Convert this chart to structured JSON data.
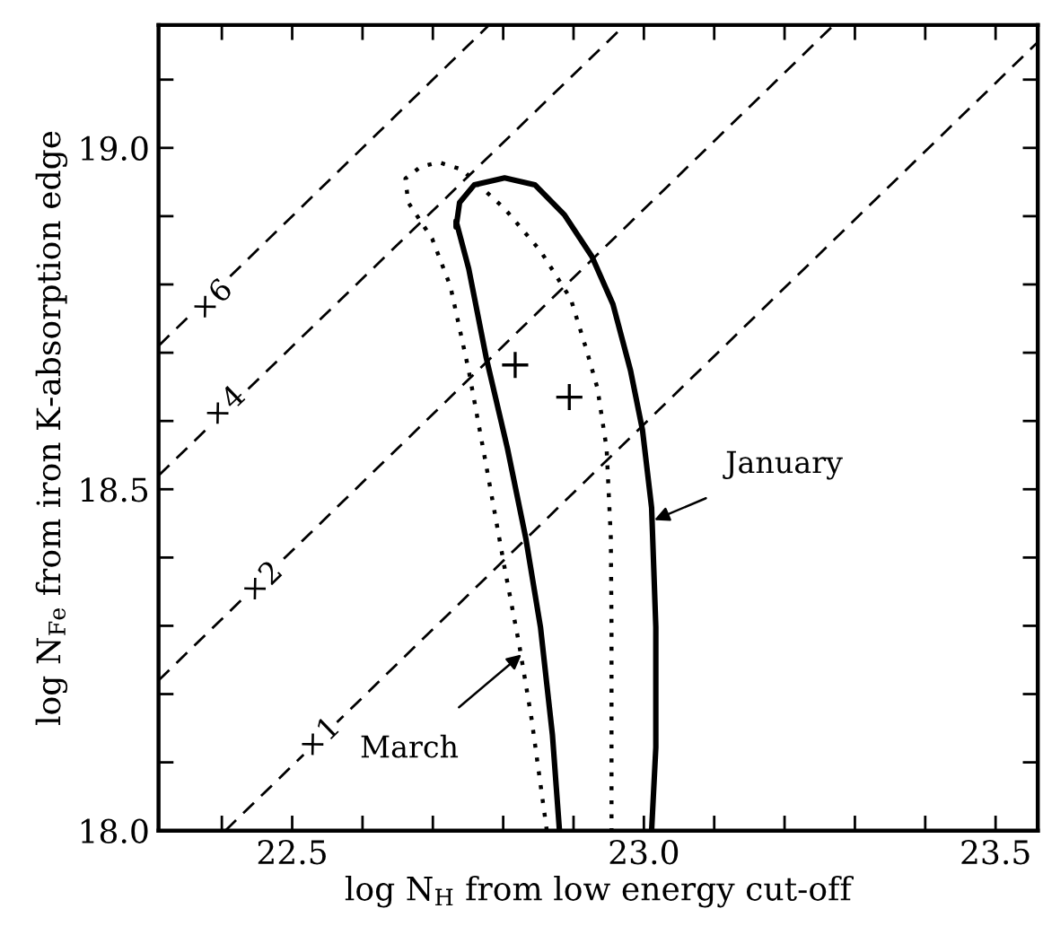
{
  "chart_data": {
    "type": "line",
    "xlabel": "log N$_{H}$ from low energy cut-off",
    "ylabel": "log N$_{Fe}$ from iron K-absorption edge",
    "xlim": [
      22.31,
      23.56
    ],
    "ylim": [
      18.0,
      19.18
    ],
    "xticks": [
      {
        "value": 22.4,
        "label": null
      },
      22.5,
      {
        "value": 22.6,
        "label": null
      },
      {
        "value": 22.7,
        "label": null
      },
      {
        "value": 22.8,
        "label": null
      },
      {
        "value": 22.9,
        "label": null
      },
      {
        "value": 23.0,
        "label": "23.0"
      },
      {
        "value": 23.1,
        "label": null
      },
      {
        "value": 23.2,
        "label": null
      },
      {
        "value": 23.3,
        "label": null
      },
      {
        "value": 23.4,
        "label": null
      },
      23.5
    ],
    "yticks": [
      {
        "value": 18.0,
        "label": "18.0"
      },
      {
        "value": 18.1,
        "label": null
      },
      {
        "value": 18.2,
        "label": null
      },
      {
        "value": 18.3,
        "label": null
      },
      {
        "value": 18.4,
        "label": null
      },
      18.5,
      {
        "value": 18.6,
        "label": null
      },
      {
        "value": 18.7,
        "label": null
      },
      {
        "value": 18.8,
        "label": null
      },
      {
        "value": 18.9,
        "label": null
      },
      {
        "value": 19.0,
        "label": "19.0"
      },
      {
        "value": 19.1,
        "label": null
      }
    ],
    "grid": false,
    "legend": false,
    "series": [
      {
        "color": "#000000",
        "line_style": "solid",
        "x": [
          22.88,
          22.87,
          22.853,
          22.832,
          22.806,
          22.776,
          22.751,
          22.733,
          22.733,
          22.738,
          22.759,
          22.802,
          22.845,
          22.887,
          22.926,
          22.956,
          22.981,
          22.998,
          23.011,
          23.017,
          23.017,
          23.011
        ],
        "values": [
          18.0,
          18.14,
          18.298,
          18.429,
          18.56,
          18.692,
          18.823,
          18.893,
          18.884,
          18.92,
          18.946,
          18.956,
          18.946,
          18.902,
          18.841,
          18.771,
          18.674,
          18.587,
          18.473,
          18.298,
          18.122,
          18.0
        ]
      },
      {
        "color": "#000000",
        "line_style": "dotted",
        "x": [
          22.862,
          22.84,
          22.823,
          22.802,
          22.776,
          22.751,
          22.725,
          22.699,
          22.665,
          22.661,
          22.682,
          22.708,
          22.742,
          22.751,
          22.802,
          22.853,
          22.896,
          22.917,
          22.934,
          22.947,
          22.953,
          22.954,
          22.954,
          22.954
        ],
        "values": [
          18.0,
          18.166,
          18.271,
          18.385,
          18.534,
          18.674,
          18.797,
          18.867,
          18.92,
          18.955,
          18.972,
          18.979,
          18.968,
          18.959,
          18.911,
          18.849,
          18.779,
          18.709,
          18.648,
          18.56,
          18.429,
          18.298,
          18.122,
          18.0
        ]
      },
      {
        "color": "#000000",
        "line_style": "dashed",
        "x": [
          22.405,
          23.56
        ],
        "values": [
          18.0,
          19.155
        ]
      },
      {
        "color": "#000000",
        "line_style": "dashed",
        "x": [
          22.31,
          23.27
        ],
        "values": [
          18.22,
          19.18
        ]
      },
      {
        "color": "#000000",
        "line_style": "dashed",
        "x": [
          22.31,
          22.973
        ],
        "values": [
          18.52,
          19.18
        ]
      },
      {
        "color": "#000000",
        "line_style": "dashed",
        "x": [
          22.31,
          22.78
        ],
        "values": [
          18.71,
          19.18
        ]
      },
      {
        "type": "scatter",
        "marker": "cross",
        "color": "#000000",
        "x": [
          22.817,
          22.894
        ],
        "values": [
          18.682,
          18.635
        ]
      }
    ],
    "annotations": [
      {
        "text": "×6",
        "x": 22.387,
        "y": 18.776
      },
      {
        "text": "×4",
        "x": 22.405,
        "y": 18.62
      },
      {
        "text": "×2",
        "x": 22.458,
        "y": 18.363
      },
      {
        "text": "×1",
        "x": 22.54,
        "y": 18.135
      },
      {
        "text": "January",
        "x": 23.015,
        "y": 18.455
      },
      {
        "text": "March",
        "x": 22.826,
        "y": 18.258
      }
    ]
  }
}
